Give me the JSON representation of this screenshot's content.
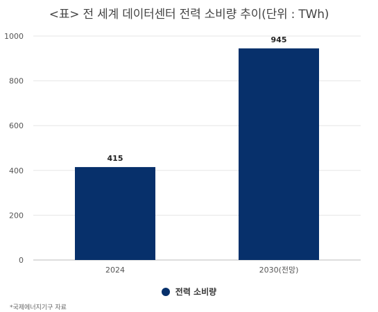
{
  "chart_data": {
    "type": "bar",
    "title": "<표> 전 세계 데이터센터 전력 소비량 추이(단위 : TWh)",
    "categories": [
      "2024",
      "2030(전망)"
    ],
    "series": [
      {
        "name": "전력 소비량",
        "values": [
          415,
          945
        ]
      }
    ],
    "data_labels": [
      "415",
      "945"
    ],
    "ylim": [
      0,
      1000
    ],
    "yticks": [
      0,
      200,
      400,
      600,
      800,
      1000
    ],
    "grid": true,
    "legend": "bottom",
    "bar_color": "#07306b",
    "xlabel": "",
    "ylabel": ""
  },
  "source_note": "*국제에너지기구 자료"
}
